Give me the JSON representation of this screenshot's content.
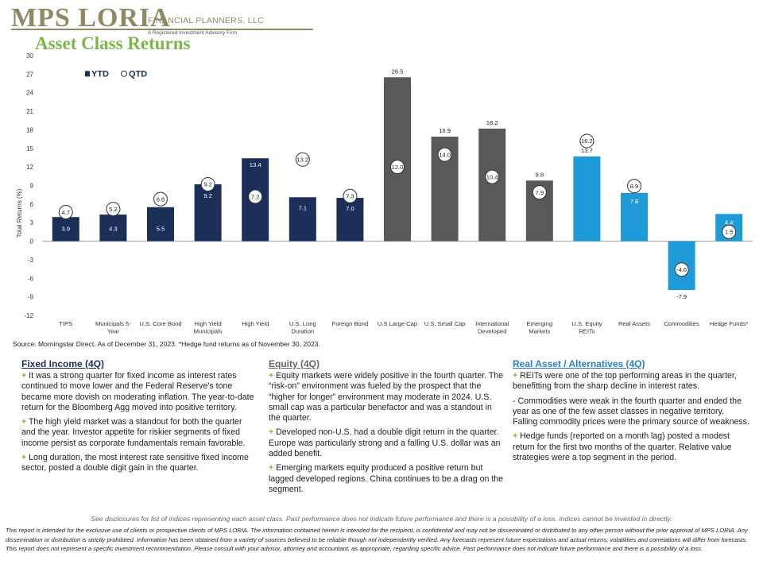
{
  "header": {
    "logo_main": "MPS LORIA",
    "logo_fp": "FINANCIAL PLANNERS, LLC",
    "logo_sub": "A Registered Investment Advisory Firm",
    "title": "Asset Class Returns"
  },
  "colors": {
    "fixed_income": "#1b2f59",
    "equity": "#595959",
    "real_asset": "#1e9ad6",
    "brand_olive": "#8f8a63",
    "title_green": "#7ab648"
  },
  "chart_data": {
    "type": "bar",
    "title": "",
    "ylabel": "Total Returns (%)",
    "xlabel": "",
    "ylim": [
      -12,
      30
    ],
    "yticks": [
      30,
      27,
      24,
      21,
      18,
      15,
      12,
      9,
      6,
      3,
      0,
      -3,
      -6,
      -9,
      -12
    ],
    "legend": {
      "placement": "top-left",
      "entries": [
        "YTD",
        "QTD"
      ]
    },
    "categories": [
      {
        "label": [
          "TIPS"
        ],
        "group": "fixed_income",
        "ytd": 3.9,
        "qtd": 4.7
      },
      {
        "label": [
          "Municipals 5-",
          "Year"
        ],
        "group": "fixed_income",
        "ytd": 4.3,
        "qtd": 5.2
      },
      {
        "label": [
          "U.S. Core Bond"
        ],
        "group": "fixed_income",
        "ytd": 5.5,
        "qtd": 6.8
      },
      {
        "label": [
          "High Yield",
          "Municipals"
        ],
        "group": "fixed_income",
        "ytd": 9.2,
        "qtd": 9.2
      },
      {
        "label": [
          "High Yield"
        ],
        "group": "fixed_income",
        "ytd": 13.4,
        "qtd": 7.2
      },
      {
        "label": [
          "U.S. Long",
          "Duration"
        ],
        "group": "fixed_income",
        "ytd": 7.1,
        "qtd": 13.2
      },
      {
        "label": [
          "Foreign Bond"
        ],
        "group": "fixed_income",
        "ytd": 7.0,
        "qtd": 7.3
      },
      {
        "label": [
          "U.S Large Cap"
        ],
        "group": "equity",
        "ytd": 26.5,
        "qtd": 12.0
      },
      {
        "label": [
          "U.S. Small Cap"
        ],
        "group": "equity",
        "ytd": 16.9,
        "qtd": 14.0
      },
      {
        "label": [
          "International",
          "Developed"
        ],
        "group": "equity",
        "ytd": 18.2,
        "qtd": 10.4
      },
      {
        "label": [
          "Emerging",
          "Markets"
        ],
        "group": "equity",
        "ytd": 9.8,
        "qtd": 7.9
      },
      {
        "label": [
          "U.S. Equity",
          "REITs"
        ],
        "group": "real_asset",
        "ytd": 13.7,
        "qtd": 16.2
      },
      {
        "label": [
          "Real Assets"
        ],
        "group": "real_asset",
        "ytd": 7.8,
        "qtd": 8.9
      },
      {
        "label": [
          "Commodities"
        ],
        "group": "real_asset",
        "ytd": -7.9,
        "qtd": -4.6
      },
      {
        "label": [
          "Hedge Funds*"
        ],
        "group": "real_asset",
        "ytd": 4.4,
        "qtd": 1.5
      }
    ]
  },
  "source_note": "Source: Morningstar Direct. As of December 31, 2023. *Hedge fund returns as of November 30, 2023.",
  "columns": {
    "fixed_income": {
      "title": "Fixed Income (4Q)",
      "items": [
        {
          "sign": "+",
          "text": "It was a strong quarter for fixed income as interest rates continued to move lower and the Federal Reserve's tone became more dovish on moderating inflation. The year-to-date return for the Bloomberg Agg moved into positive territory."
        },
        {
          "sign": "+",
          "text": "The high yield market was a standout for both the quarter and the year. Investor appetite for riskier segments of fixed income persist as corporate fundamentals remain favorable."
        },
        {
          "sign": "+",
          "text": "Long duration, the most interest rate sensitive fixed income sector, posted a double digit gain in the quarter."
        }
      ]
    },
    "equity": {
      "title": "Equity (4Q)",
      "items": [
        {
          "sign": "+",
          "text": "Equity markets were widely positive in the fourth quarter. The “risk-on” environment was fueled by the prospect that the “higher for longer” environment may moderate in 2024. U.S. small cap was a particular benefactor and was a standout in the quarter."
        },
        {
          "sign": "+",
          "text": "Developed non-U.S. had a double digit return in the quarter. Europe was particularly strong and a falling U.S. dollar was an added benefit."
        },
        {
          "sign": "+",
          "text": "Emerging markets equity produced a positive return but lagged developed regions. China continues to be a drag on the segment."
        }
      ]
    },
    "real_asset": {
      "title": "Real Asset / Alternatives (4Q)",
      "items": [
        {
          "sign": "+",
          "text": "REITs were one of the top performing areas in the quarter, benefitting from the sharp decline in interest rates."
        },
        {
          "sign": "-",
          "text": "Commodities were weak in the fourth quarter and ended the year as one of the few asset classes in negative territory. Falling commodity prices were the primary source of weakness."
        },
        {
          "sign": "+",
          "text": "Hedge funds (reported on a month lag) posted a modest return for the first two months of the quarter. Relative value strategies were a top segment in the period."
        }
      ]
    }
  },
  "disclosure": "See disclosures for list of indices representing each asset class. Past performance does not indicate future performance and there is a possibility of a loss. Indices cannot be invested in directly.",
  "legal": "This report is intended for the exclusive use of clients or prospective clients of MPS LORIA. The information contained herein is intended for the recipient, is confidential and may not be disseminated or distributed to any other person without the prior approval of MPS LORIA. Any dissemination or distribution is strictly prohibited. Information has been obtained from a variety of sources believed to be reliable though not independently verified. Any forecasts represent future expectations and actual returns; volatilities and correlations will differ from forecasts. This report does not represent a specific investment recommendation. Please consult with your advisor, attorney and accountant, as appropriate, regarding specific advice. Past performance does not indicate future performance and there is a possibility of a loss."
}
